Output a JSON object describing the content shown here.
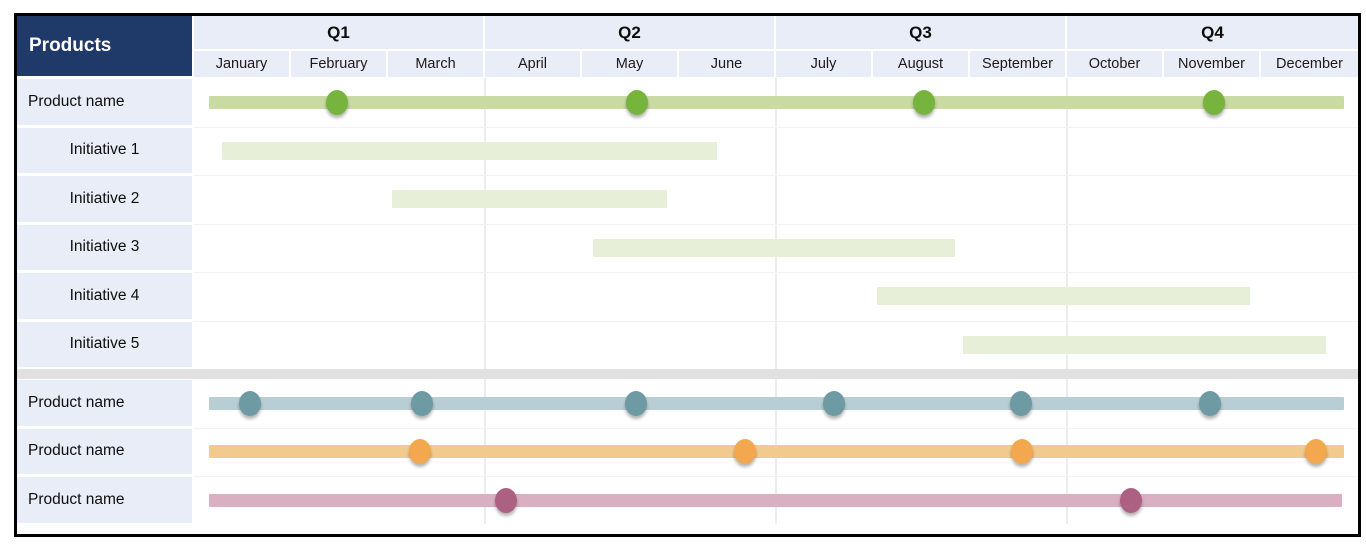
{
  "header": {
    "products_label": "Products"
  },
  "colors": {
    "header_navy": "#1f3a68",
    "header_cell_bg": "#e9edf8",
    "label_cell_bg": "#e9edf8",
    "separator": "#e1e1e1",
    "gridline": "#ededed",
    "frame_border": "#000000"
  },
  "chart_data": {
    "type": "gantt",
    "quarters": [
      "Q1",
      "Q2",
      "Q3",
      "Q4"
    ],
    "months": [
      "January",
      "February",
      "March",
      "April",
      "May",
      "June",
      "July",
      "August",
      "September",
      "October",
      "November",
      "December"
    ],
    "time_unit": "month",
    "axis_range": [
      0,
      12
    ],
    "separator_before_row": 6,
    "rows": [
      {
        "label": "Product name",
        "kind": "product",
        "bar": {
          "start": 0.15,
          "end": 11.86,
          "color": "#c9daa3"
        },
        "milestones": {
          "color": "#77b43e",
          "positions": [
            1.47,
            4.57,
            7.53,
            10.52
          ]
        }
      },
      {
        "label": "Initiative 1",
        "kind": "initiative",
        "bar": {
          "start": 0.29,
          "end": 5.39,
          "color": "#e8efd9"
        }
      },
      {
        "label": "Initiative 2",
        "kind": "initiative",
        "bar": {
          "start": 2.04,
          "end": 4.88,
          "color": "#e8efd9"
        }
      },
      {
        "label": "Initiative 3",
        "kind": "initiative",
        "bar": {
          "start": 4.11,
          "end": 7.85,
          "color": "#e8efd9"
        }
      },
      {
        "label": "Initiative 4",
        "kind": "initiative",
        "bar": {
          "start": 7.04,
          "end": 10.89,
          "color": "#e8efd9"
        }
      },
      {
        "label": "Initiative 5",
        "kind": "initiative",
        "bar": {
          "start": 7.93,
          "end": 11.67,
          "color": "#e8efd9"
        }
      },
      {
        "label": "Product name",
        "kind": "product",
        "bar": {
          "start": 0.15,
          "end": 11.86,
          "color": "#b9ced4"
        },
        "milestones": {
          "color": "#6e9aa3",
          "positions": [
            0.58,
            2.35,
            4.56,
            6.6,
            8.53,
            10.47
          ]
        }
      },
      {
        "label": "Product name",
        "kind": "product",
        "bar": {
          "start": 0.15,
          "end": 11.86,
          "color": "#f1cb8e"
        },
        "milestones": {
          "color": "#f3a74f",
          "positions": [
            2.33,
            5.68,
            8.54,
            11.57
          ]
        }
      },
      {
        "label": "Product name",
        "kind": "product",
        "bar": {
          "start": 0.15,
          "end": 11.84,
          "color": "#dbafc2"
        },
        "milestones": {
          "color": "#ac6182",
          "positions": [
            3.22,
            9.66
          ]
        }
      }
    ]
  }
}
